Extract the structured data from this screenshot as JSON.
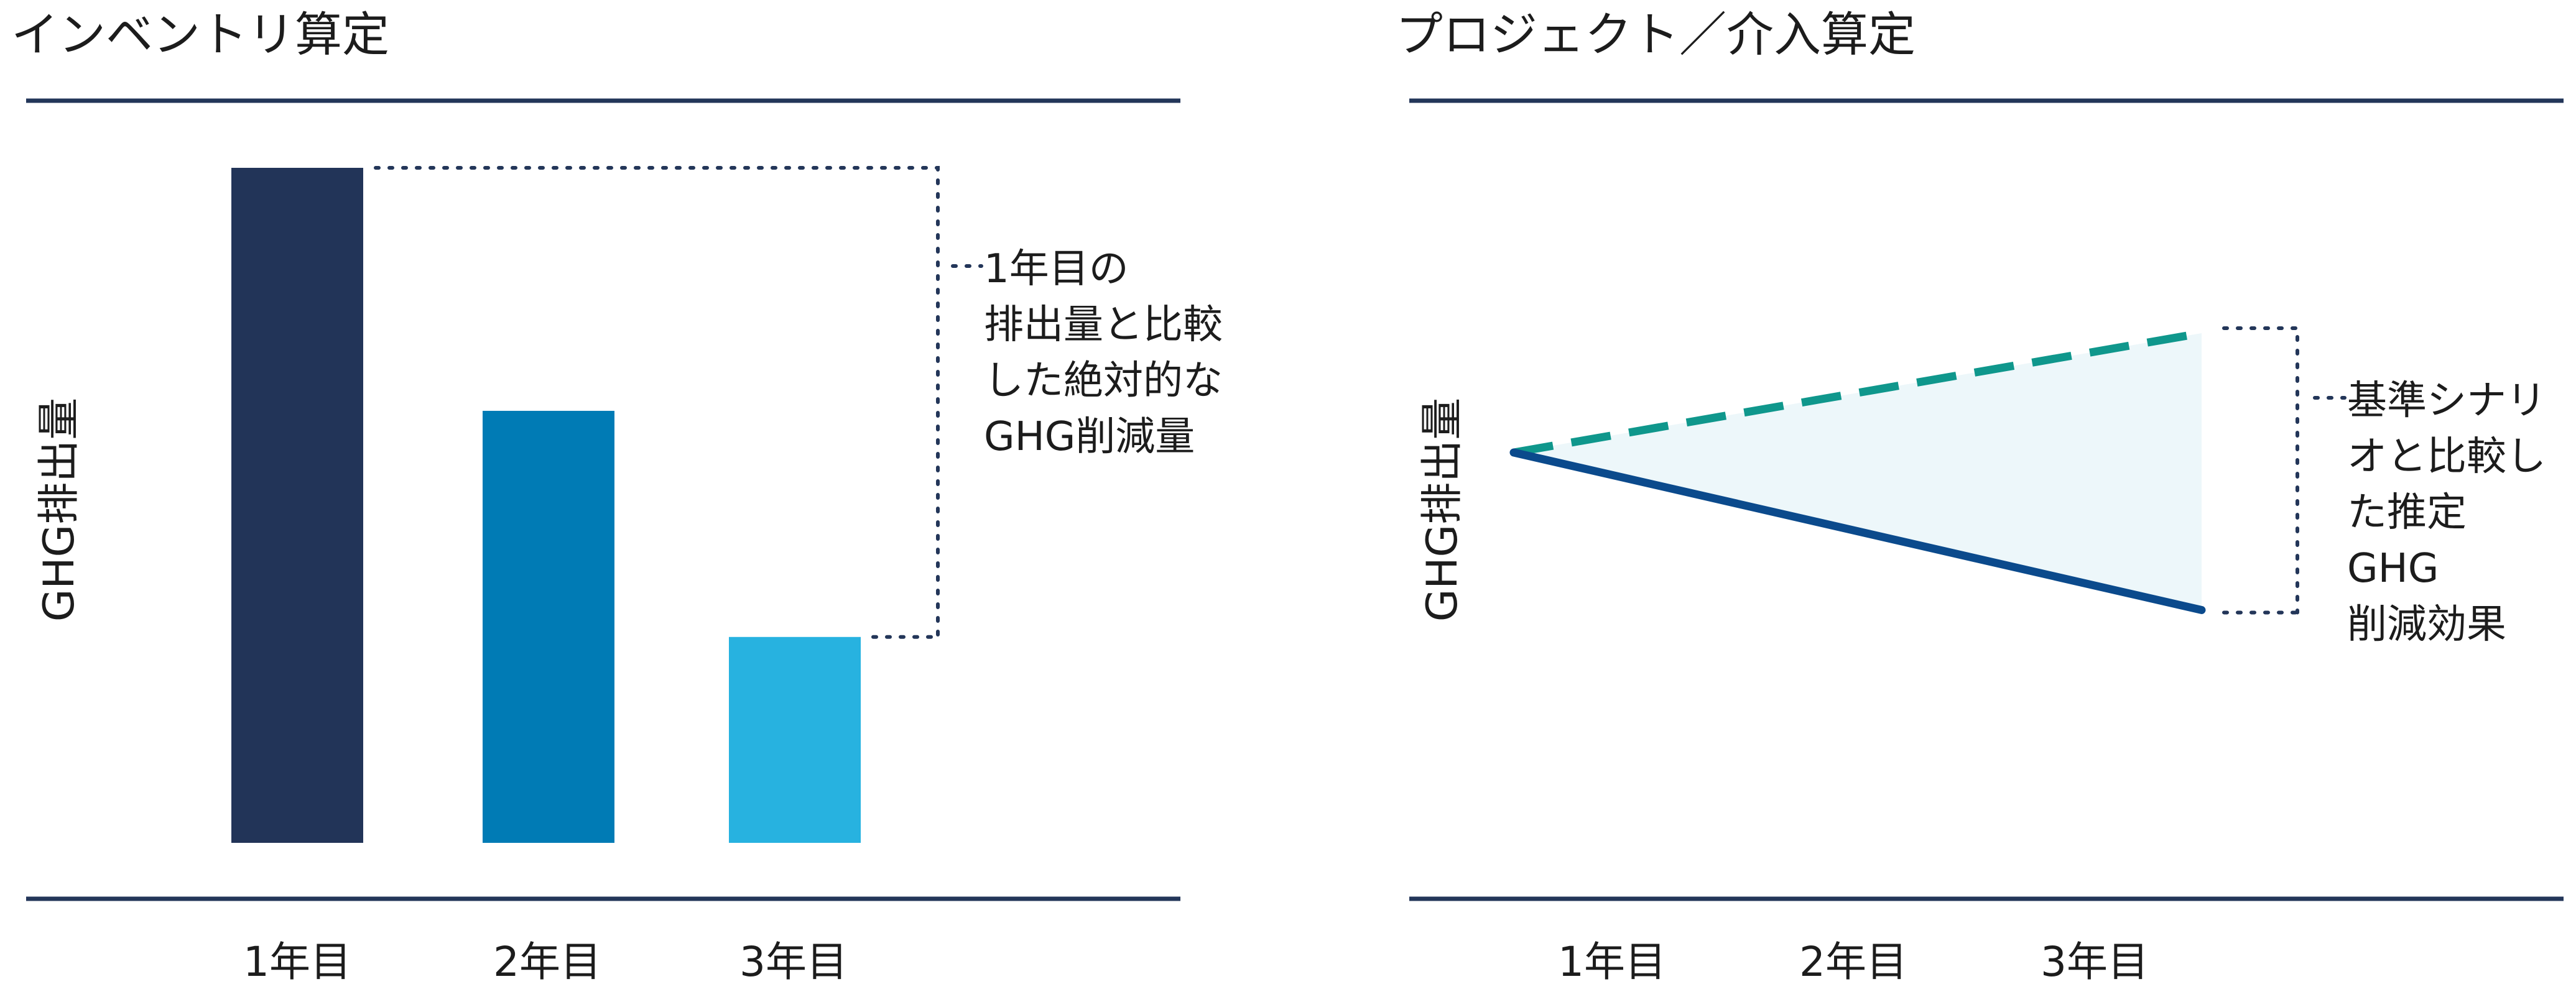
{
  "colors": {
    "rule": "#233659",
    "text": "#1c1c1c",
    "dots": "#233659",
    "bar_year1": "#223458",
    "bar_year2": "#007bb5",
    "bar_year3": "#27b2e0",
    "actual_line": "#0b4a8c",
    "baseline_line": "#0f978c",
    "reduction_fill": "#edf7fa"
  },
  "inventory": {
    "title": "インベントリ算定",
    "y_axis_label": "GHG排出量",
    "categories": [
      "1年目",
      "2年目",
      "3年目"
    ],
    "annotation_lines": [
      "1年目の",
      "排出量と比較",
      "した絶対的な",
      "GHG削減量"
    ]
  },
  "project": {
    "title": "プロジェクト／介入算定",
    "y_axis_label": "GHG排出量",
    "categories": [
      "1年目",
      "2年目",
      "3年目"
    ],
    "annotation_lines": [
      "基準シナリ",
      "オと比較し",
      "た推定",
      "GHG",
      "削減効果"
    ]
  },
  "chart_data": [
    {
      "type": "bar",
      "title": "インベントリ算定",
      "ylabel": "GHG排出量",
      "categories": [
        "1年目",
        "2年目",
        "3年目"
      ],
      "values": [
        100,
        64,
        30.5
      ],
      "ylim": [
        0,
        100
      ]
    },
    {
      "type": "line",
      "title": "プロジェクト／介入算定",
      "ylabel": "GHG排出量",
      "x": [
        0,
        3
      ],
      "series": [
        {
          "values": [
            100,
            137.5
          ],
          "style": "dashed"
        },
        {
          "values": [
            100,
            50.5
          ],
          "style": "solid"
        }
      ],
      "ylim": [
        0,
        137.5
      ]
    }
  ]
}
